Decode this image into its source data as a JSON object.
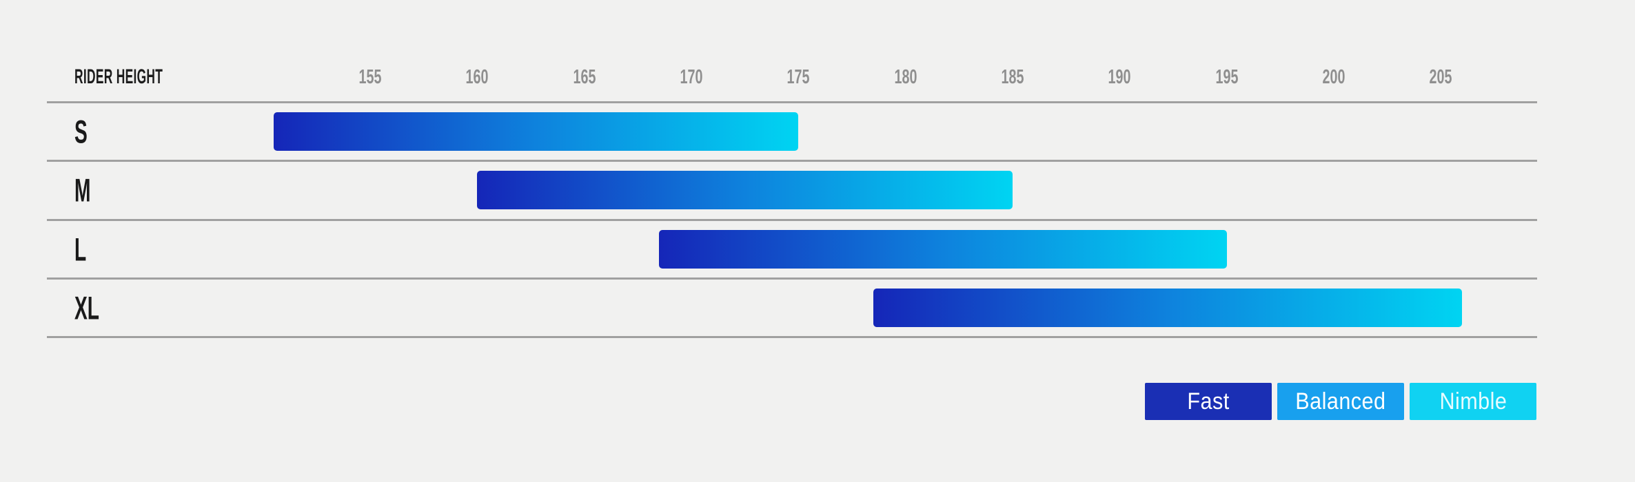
{
  "page": {
    "background": "#f1f1f0",
    "line_color": "#a0a0a0",
    "tick_text_color": "#8f8f8f",
    "label_text_color": "#1a1a1a"
  },
  "chart": {
    "header_label": "RIDER HEIGHT",
    "axis": {
      "ticks": [
        155,
        160,
        165,
        170,
        175,
        180,
        185,
        190,
        195,
        200,
        205
      ],
      "domain_min": 139.9,
      "domain_max": 209.5
    },
    "rows": [
      {
        "label": "S",
        "range_min": 150.5,
        "range_max": 175
      },
      {
        "label": "M",
        "range_min": 160,
        "range_max": 185
      },
      {
        "label": "L",
        "range_min": 168.5,
        "range_max": 195
      },
      {
        "label": "XL",
        "range_min": 178.5,
        "range_max": 206
      }
    ],
    "bar_gradient": {
      "start": "#1526b8",
      "mid": "#0e82dd",
      "end": "#00d4f2"
    }
  },
  "legend": {
    "items": [
      {
        "label": "Fast",
        "color": "#1a2fb4",
        "text_color": "#ffffff"
      },
      {
        "label": "Balanced",
        "color": "#18a0ee",
        "text_color": "#ffffff"
      },
      {
        "label": "Nimble",
        "color": "#10d2f2",
        "text_color": "#e6fbff"
      }
    ]
  },
  "chart_data": {
    "type": "bar",
    "subtype": "horizontal-range-bars",
    "title": "",
    "xlabel": "RIDER HEIGHT",
    "ylabel": "",
    "categories": [
      "S",
      "M",
      "L",
      "XL"
    ],
    "series": [
      {
        "name": "rider_height_range_cm",
        "ranges": [
          [
            150.5,
            175
          ],
          [
            160,
            185
          ],
          [
            168.5,
            195
          ],
          [
            178.5,
            206
          ]
        ]
      }
    ],
    "x_ticks": [
      155,
      160,
      165,
      170,
      175,
      180,
      185,
      190,
      195,
      200,
      205
    ],
    "xlim": [
      139.9,
      209.5
    ],
    "grid": "horizontal row divider lines only",
    "legend": [
      "Fast",
      "Balanced",
      "Nimble"
    ],
    "legend_position": "bottom-right",
    "style_note": "each bar fades left-to-right from dark blue (Fast) through mid blue (Balanced) to cyan (Nimble)"
  }
}
